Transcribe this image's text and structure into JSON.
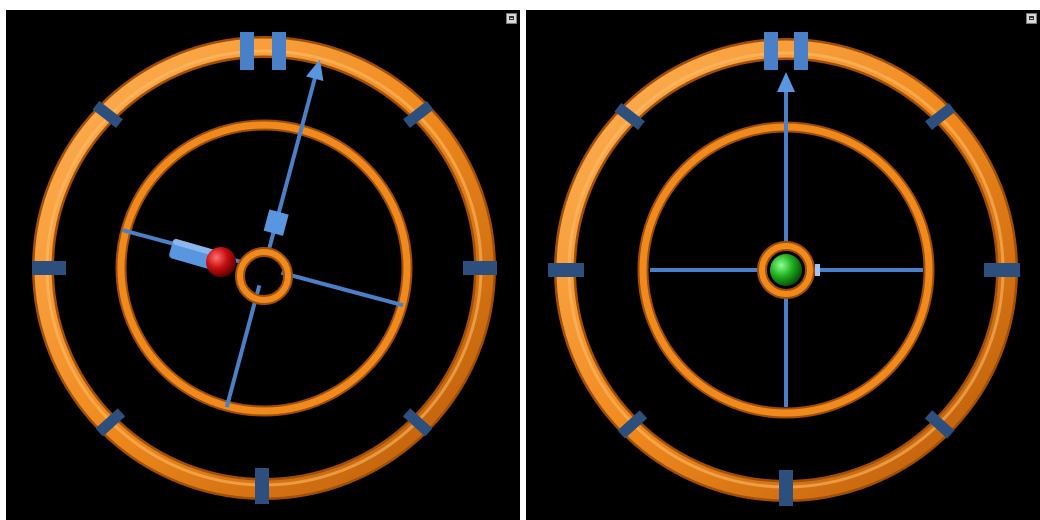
{
  "colors": {
    "background": "#000000",
    "ring": "#f08a1e",
    "ring_highlight": "#ffc070",
    "ring_shadow": "#a24e05",
    "spoke": "#4a80c8",
    "marker": "#2c4f7e",
    "arrow": "#5a96e0",
    "red_ball": "#c81010",
    "green_ball": "#20b020"
  },
  "icons": {
    "maximize": "maximize-icon"
  },
  "views": [
    {
      "name": "left-view",
      "rotation_deg": 15,
      "ball": "red-sphere",
      "ball_color": "#c81010"
    },
    {
      "name": "right-view",
      "rotation_deg": 0,
      "ball": "green-sphere",
      "ball_color": "#20b020"
    }
  ]
}
